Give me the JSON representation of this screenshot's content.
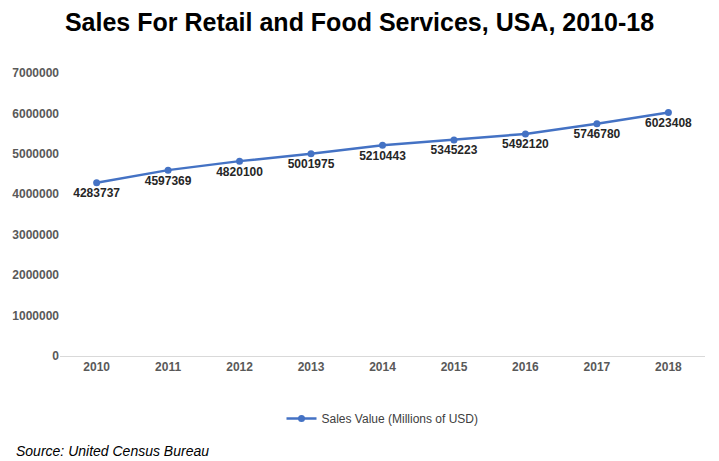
{
  "chart_data": {
    "type": "line",
    "title": "Sales For Retail and Food Services, USA, 2010-18",
    "categories": [
      "2010",
      "2011",
      "2012",
      "2013",
      "2014",
      "2015",
      "2016",
      "2017",
      "2018"
    ],
    "series": [
      {
        "name": "Sales Value (Millions of USD)",
        "color": "#4472c4",
        "marker": "circle",
        "values": [
          4283737,
          4597369,
          4820100,
          5001975,
          5210443,
          5345223,
          5492120,
          5746780,
          6023408
        ]
      }
    ],
    "ylim": [
      0,
      7000000
    ],
    "yticks": [
      0,
      1000000,
      2000000,
      3000000,
      4000000,
      5000000,
      6000000,
      7000000
    ],
    "grid": false,
    "legend": "bottom",
    "data_labels": true,
    "annotations": [
      "Source: United Census Bureau"
    ]
  }
}
